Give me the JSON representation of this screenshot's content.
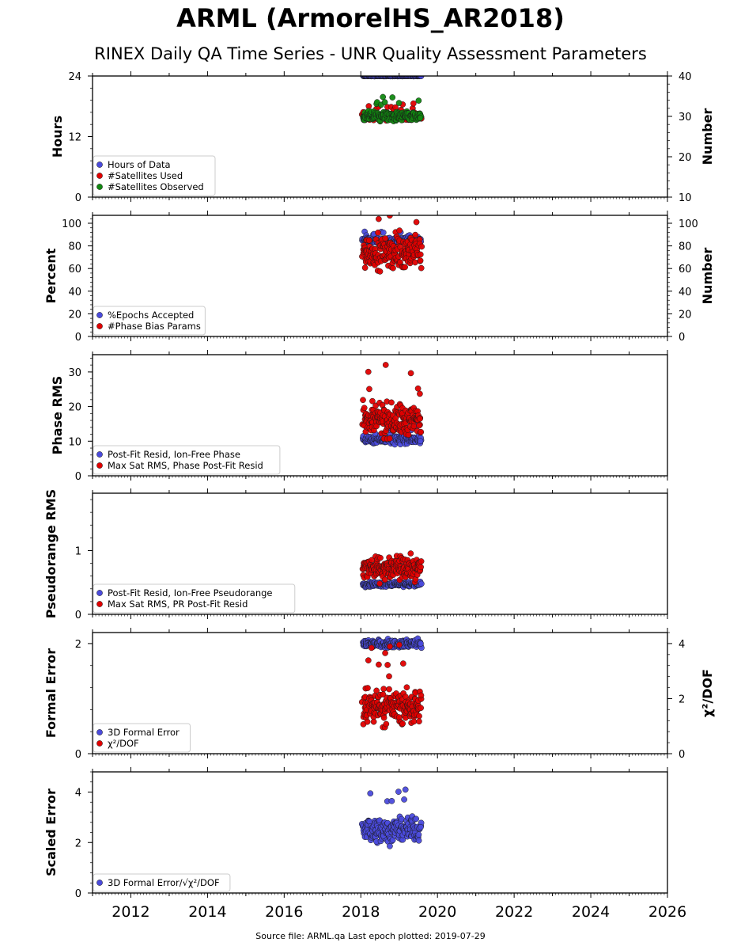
{
  "title": "ARML (ArmorelHS_AR2018)",
  "subtitle": "RINEX Daily QA Time Series - UNR Quality Assessment Parameters",
  "footer": "Source file: ARML.qa Last epoch plotted: 2019-07-29",
  "colors": {
    "blue": "#4b4bdc",
    "red": "#e00000",
    "green": "#118811"
  },
  "chart_data": [
    {
      "type": "scatter",
      "ylabel": "Hours",
      "ylabel_right": "Number",
      "xlim": [
        2011.0,
        2026.0
      ],
      "ylim": [
        0,
        24
      ],
      "yticks": [
        0,
        12,
        24
      ],
      "ylim_right": [
        10,
        40
      ],
      "yticks_right": [
        10,
        20,
        30,
        40
      ],
      "legend": "lower-left",
      "series": [
        {
          "name": "Hours of Data",
          "color": "blue",
          "axis": "left",
          "xrange": [
            2018.05,
            2019.57
          ],
          "center": 24.0,
          "spread": 0.05
        },
        {
          "name": "#Satellites Used",
          "color": "red",
          "axis": "right",
          "xrange": [
            2018.05,
            2019.57
          ],
          "center": 30.0,
          "spread": 0.7
        },
        {
          "name": "#Satellites Observed",
          "color": "green",
          "axis": "right",
          "xrange": [
            2018.05,
            2019.57
          ],
          "center": 30.0,
          "spread": 1.0
        }
      ]
    },
    {
      "type": "scatter",
      "ylabel": "Percent",
      "ylabel_right": "Number",
      "xlim": [
        2011.0,
        2026.0
      ],
      "ylim": [
        0,
        107
      ],
      "yticks": [
        0,
        20,
        40,
        60,
        80,
        100
      ],
      "ylim_right": [
        0,
        107
      ],
      "yticks_right": [
        0,
        20,
        40,
        60,
        80,
        100
      ],
      "legend": "lower-left",
      "series": [
        {
          "name": "%Epochs Accepted",
          "color": "blue",
          "axis": "left",
          "xrange": [
            2018.05,
            2019.57
          ],
          "center": 85,
          "spread": 2
        },
        {
          "name": "#Phase Bias Params",
          "color": "red",
          "axis": "right",
          "xrange": [
            2018.05,
            2019.57
          ],
          "center": 75,
          "spread": 12
        }
      ]
    },
    {
      "type": "scatter",
      "ylabel": "Phase RMS",
      "xlim": [
        2011.0,
        2026.0
      ],
      "ylim": [
        0,
        35
      ],
      "yticks": [
        0,
        10,
        20,
        30
      ],
      "legend": "lower-left",
      "series": [
        {
          "name": "Post-Fit Resid, Ion-Free Phase",
          "color": "blue",
          "axis": "left",
          "xrange": [
            2018.05,
            2019.57
          ],
          "center": 10.5,
          "spread": 1.0
        },
        {
          "name": "Max Sat RMS, Phase Post-Fit Resid",
          "color": "red",
          "axis": "left",
          "xrange": [
            2018.05,
            2019.57
          ],
          "center": 16,
          "spread": 4
        }
      ]
    },
    {
      "type": "scatter",
      "ylabel": "Pseudorange RMS",
      "xlim": [
        2011.0,
        2026.0
      ],
      "ylim": [
        0,
        1.9
      ],
      "yticks": [
        0,
        1
      ],
      "legend": "lower-left",
      "series": [
        {
          "name": "Post-Fit Resid, Ion-Free Pseudorange",
          "color": "blue",
          "axis": "left",
          "xrange": [
            2018.05,
            2019.57
          ],
          "center": 0.47,
          "spread": 0.03
        },
        {
          "name": "Max Sat RMS, PR Post-Fit Resid",
          "color": "red",
          "axis": "left",
          "xrange": [
            2018.05,
            2019.57
          ],
          "center": 0.72,
          "spread": 0.15
        }
      ]
    },
    {
      "type": "scatter",
      "ylabel": "Formal Error",
      "ylabel_right": "χ²/DOF",
      "xlim": [
        2011.0,
        2026.0
      ],
      "ylim": [
        0,
        2.2
      ],
      "yticks": [
        0,
        2
      ],
      "ylim_right": [
        0,
        4.4
      ],
      "yticks_right": [
        0,
        2,
        4
      ],
      "legend": "lower-left",
      "series": [
        {
          "name": "3D Formal Error",
          "color": "blue",
          "axis": "left",
          "xrange": [
            2018.05,
            2019.57
          ],
          "center": 2.0,
          "spread": 0.06
        },
        {
          "name": "χ²/DOF",
          "color": "red",
          "axis": "right",
          "xrange": [
            2018.05,
            2019.57
          ],
          "center": 1.7,
          "spread": 0.5
        }
      ]
    },
    {
      "type": "scatter",
      "ylabel": "Scaled Error",
      "xlim": [
        2011.0,
        2026.0
      ],
      "ylim": [
        0,
        4.8
      ],
      "yticks": [
        0,
        2,
        4
      ],
      "xticks": [
        2012,
        2014,
        2016,
        2018,
        2020,
        2022,
        2024,
        2026
      ],
      "legend": "lower-left",
      "series": [
        {
          "name": "3D Formal Error/√χ²/DOF",
          "color": "blue",
          "axis": "left",
          "xrange": [
            2018.05,
            2019.57
          ],
          "center": 2.5,
          "spread": 0.4
        }
      ]
    }
  ]
}
